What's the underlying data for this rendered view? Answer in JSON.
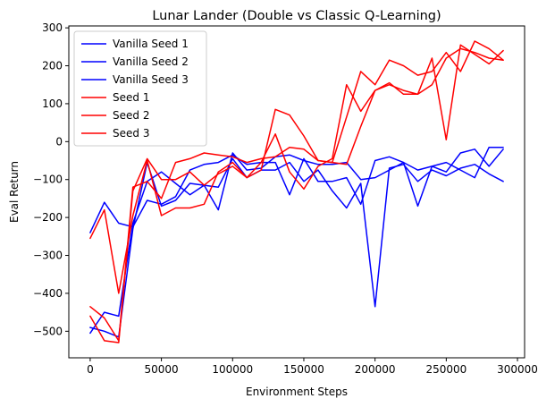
{
  "chart_data": {
    "type": "line",
    "title": "Lunar Lander (Double vs Classic Q-Learning)",
    "xlabel": "Environment Steps",
    "ylabel": "Eval Return",
    "xlim": [
      -15000,
      305000
    ],
    "ylim": [
      -570,
      305
    ],
    "xticks": [
      0,
      50000,
      100000,
      150000,
      200000,
      250000,
      300000
    ],
    "xtick_labels": [
      "0",
      "50000",
      "100000",
      "150000",
      "200000",
      "250000",
      "300000"
    ],
    "yticks": [
      -500,
      -400,
      -300,
      -200,
      -100,
      0,
      100,
      200,
      300
    ],
    "ytick_labels": [
      "−500",
      "−400",
      "−300",
      "−200",
      "−100",
      "0",
      "100",
      "200",
      "300"
    ],
    "grid": false,
    "legend_position": "top-left",
    "x": [
      0,
      10000,
      20000,
      30000,
      40000,
      50000,
      60000,
      70000,
      80000,
      90000,
      100000,
      110000,
      120000,
      130000,
      140000,
      150000,
      160000,
      170000,
      180000,
      190000,
      200000,
      210000,
      220000,
      230000,
      240000,
      250000,
      260000,
      270000,
      280000,
      290000
    ],
    "series": [
      {
        "name": "Vanilla Seed 1",
        "color": "#0000ff",
        "values": [
          -240,
          -160,
          -215,
          -225,
          -155,
          -165,
          -145,
          -75,
          -60,
          -55,
          -35,
          -60,
          -55,
          -55,
          -140,
          -45,
          -105,
          -105,
          -95,
          -165,
          -50,
          -40,
          -55,
          -170,
          -65,
          -55,
          -75,
          -95,
          -15,
          -15
        ]
      },
      {
        "name": "Vanilla Seed 2",
        "color": "#0000ff",
        "values": [
          -505,
          -450,
          -460,
          -215,
          -105,
          -80,
          -110,
          -140,
          -115,
          -120,
          -45,
          -95,
          -75,
          -75,
          -55,
          -105,
          -75,
          -130,
          -175,
          -110,
          -435,
          -70,
          -60,
          -105,
          -75,
          -90,
          -70,
          -60,
          -85,
          -105
        ]
      },
      {
        "name": "Vanilla Seed 3",
        "color": "#0000ff",
        "values": [
          -490,
          -500,
          -515,
          -230,
          -55,
          -170,
          -155,
          -110,
          -115,
          -180,
          -30,
          -75,
          -70,
          -40,
          -35,
          -50,
          -60,
          -60,
          -55,
          -100,
          -95,
          -75,
          -55,
          -75,
          -65,
          -80,
          -30,
          -20,
          -65,
          -20
        ]
      },
      {
        "name": "Seed 1",
        "color": "#ff0000",
        "values": [
          -435,
          -465,
          -525,
          -120,
          -105,
          -150,
          -55,
          -45,
          -30,
          -35,
          -40,
          -55,
          -45,
          -40,
          -15,
          -20,
          -50,
          -55,
          -60,
          40,
          135,
          150,
          135,
          125,
          150,
          220,
          245,
          235,
          220,
          215
        ]
      },
      {
        "name": "Seed 2",
        "color": "#ff0000",
        "values": [
          -460,
          -525,
          -530,
          -130,
          -45,
          -100,
          -100,
          -80,
          -115,
          -85,
          -65,
          -95,
          -75,
          85,
          70,
          15,
          -50,
          -55,
          65,
          185,
          150,
          215,
          200,
          175,
          185,
          235,
          185,
          265,
          245,
          215
        ]
      },
      {
        "name": "Seed 3",
        "color": "#ff0000",
        "values": [
          -255,
          -180,
          -400,
          -195,
          -50,
          -195,
          -175,
          -175,
          -165,
          -80,
          -55,
          -95,
          -55,
          20,
          -80,
          -125,
          -65,
          -45,
          150,
          80,
          135,
          155,
          125,
          125,
          220,
          5,
          255,
          230,
          205,
          240
        ]
      }
    ]
  }
}
